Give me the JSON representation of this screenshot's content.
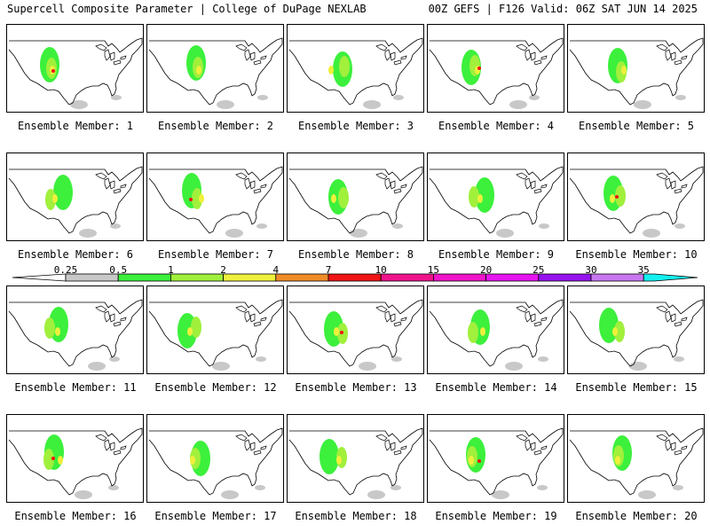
{
  "header": {
    "left_title": "Supercell Composite Parameter | College of DuPage NEXLAB",
    "right_title": "00Z GEFS | F126 Valid: 06Z SAT JUN 14 2025"
  },
  "panels": [
    {
      "label": "Ensemble Member: 1"
    },
    {
      "label": "Ensemble Member: 2"
    },
    {
      "label": "Ensemble Member: 3"
    },
    {
      "label": "Ensemble Member: 4"
    },
    {
      "label": "Ensemble Member: 5"
    },
    {
      "label": "Ensemble Member: 6"
    },
    {
      "label": "Ensemble Member: 7"
    },
    {
      "label": "Ensemble Member: 8"
    },
    {
      "label": "Ensemble Member: 9"
    },
    {
      "label": "Ensemble Member: 10"
    },
    {
      "label": "Ensemble Member: 11"
    },
    {
      "label": "Ensemble Member: 12"
    },
    {
      "label": "Ensemble Member: 13"
    },
    {
      "label": "Ensemble Member: 14"
    },
    {
      "label": "Ensemble Member: 15"
    },
    {
      "label": "Ensemble Member: 16"
    },
    {
      "label": "Ensemble Member: 17"
    },
    {
      "label": "Ensemble Member: 18"
    },
    {
      "label": "Ensemble Member: 19"
    },
    {
      "label": "Ensemble Member: 20"
    }
  ],
  "colorbar": {
    "ticks": [
      "0.25",
      "0.5",
      "1",
      "2",
      "4",
      "7",
      "10",
      "15",
      "20",
      "25",
      "30",
      "35"
    ],
    "colors": [
      "#c8c8c8",
      "#3cf03c",
      "#a0f03c",
      "#f0f03c",
      "#f08c28",
      "#f01414",
      "#f0148c",
      "#f014c8",
      "#e614f0",
      "#9614f0",
      "#c878f0",
      "#14f0f0"
    ]
  },
  "colors": {
    "gray": "#c8c8c8",
    "green": "#3cf03c",
    "lightgreen": "#a0f03c",
    "yellow": "#f0f03c",
    "orange": "#f08c28",
    "red": "#f01414"
  }
}
